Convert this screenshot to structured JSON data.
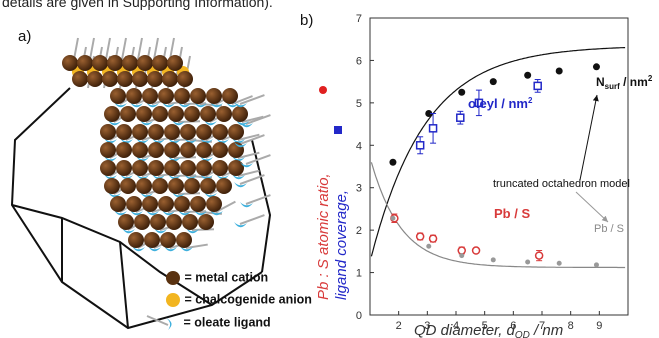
{
  "caption": "details are given in Supporting Information).",
  "panel_a": {
    "label": "a)",
    "legend": [
      {
        "text": "= metal cation",
        "color": "#5a3210"
      },
      {
        "text": "= chalcogenide anion",
        "color": "#f2b520"
      },
      {
        "text": "= oleate ligand",
        "color": "#3fb0dd"
      }
    ]
  },
  "panel_b": {
    "label": "b)",
    "annotations": {
      "nsurf": "N",
      "nsurf_sub": "surf",
      "nsurf_tail": " / nm",
      "nsurf_sup": "2",
      "oleyl": "oleyl / nm",
      "oleyl_sup": "2",
      "pbs_red": "Pb / S",
      "model": "truncated octahedron model",
      "pbs_gray": "Pb / S"
    }
  },
  "chart_data": {
    "type": "scatter",
    "xlabel": "QD diameter, d",
    "xlabel_sub": "QD",
    "xlabel_tail": " / nm",
    "ylabel_red": "Pb : S atomic ratio,",
    "ylabel_blue": "ligand coverage,",
    "xlim": [
      1,
      10
    ],
    "ylim": [
      0,
      7
    ],
    "xticks": [
      2,
      3,
      4,
      5,
      6,
      7,
      8,
      9
    ],
    "yticks": [
      0,
      1,
      2,
      3,
      4,
      5,
      6,
      7
    ],
    "series": [
      {
        "name": "Nsurf / nm2",
        "color": "#111111",
        "marker": "filled-circle",
        "x": [
          1.8,
          3.05,
          4.2,
          5.3,
          6.5,
          7.6,
          8.9
        ],
        "y": [
          3.6,
          4.75,
          5.25,
          5.5,
          5.65,
          5.75,
          5.85
        ]
      },
      {
        "name": "oleyl / nm2",
        "color": "#2228c8",
        "marker": "open-square",
        "x": [
          2.75,
          3.2,
          4.15,
          4.8,
          6.85
        ],
        "y": [
          4.0,
          4.4,
          4.65,
          5.0,
          5.4
        ],
        "err": [
          0.2,
          0.35,
          0.15,
          0.3,
          0.15
        ]
      },
      {
        "name": "Pb / S",
        "color": "#d83a3a",
        "marker": "open-circle",
        "x": [
          1.85,
          2.75,
          3.2,
          4.2,
          4.7,
          6.9
        ],
        "y": [
          2.28,
          1.85,
          1.8,
          1.52,
          1.52,
          1.4
        ],
        "err": [
          0.1,
          0.08,
          0.08,
          0.08,
          0.05,
          0.12
        ]
      },
      {
        "name": "Pb / S",
        "color": "#999999",
        "marker": "small-filled-circle",
        "x": [
          1.8,
          3.05,
          4.2,
          5.3,
          6.5,
          7.6,
          8.9
        ],
        "y": [
          2.28,
          1.62,
          1.4,
          1.3,
          1.25,
          1.22,
          1.18
        ]
      }
    ]
  }
}
